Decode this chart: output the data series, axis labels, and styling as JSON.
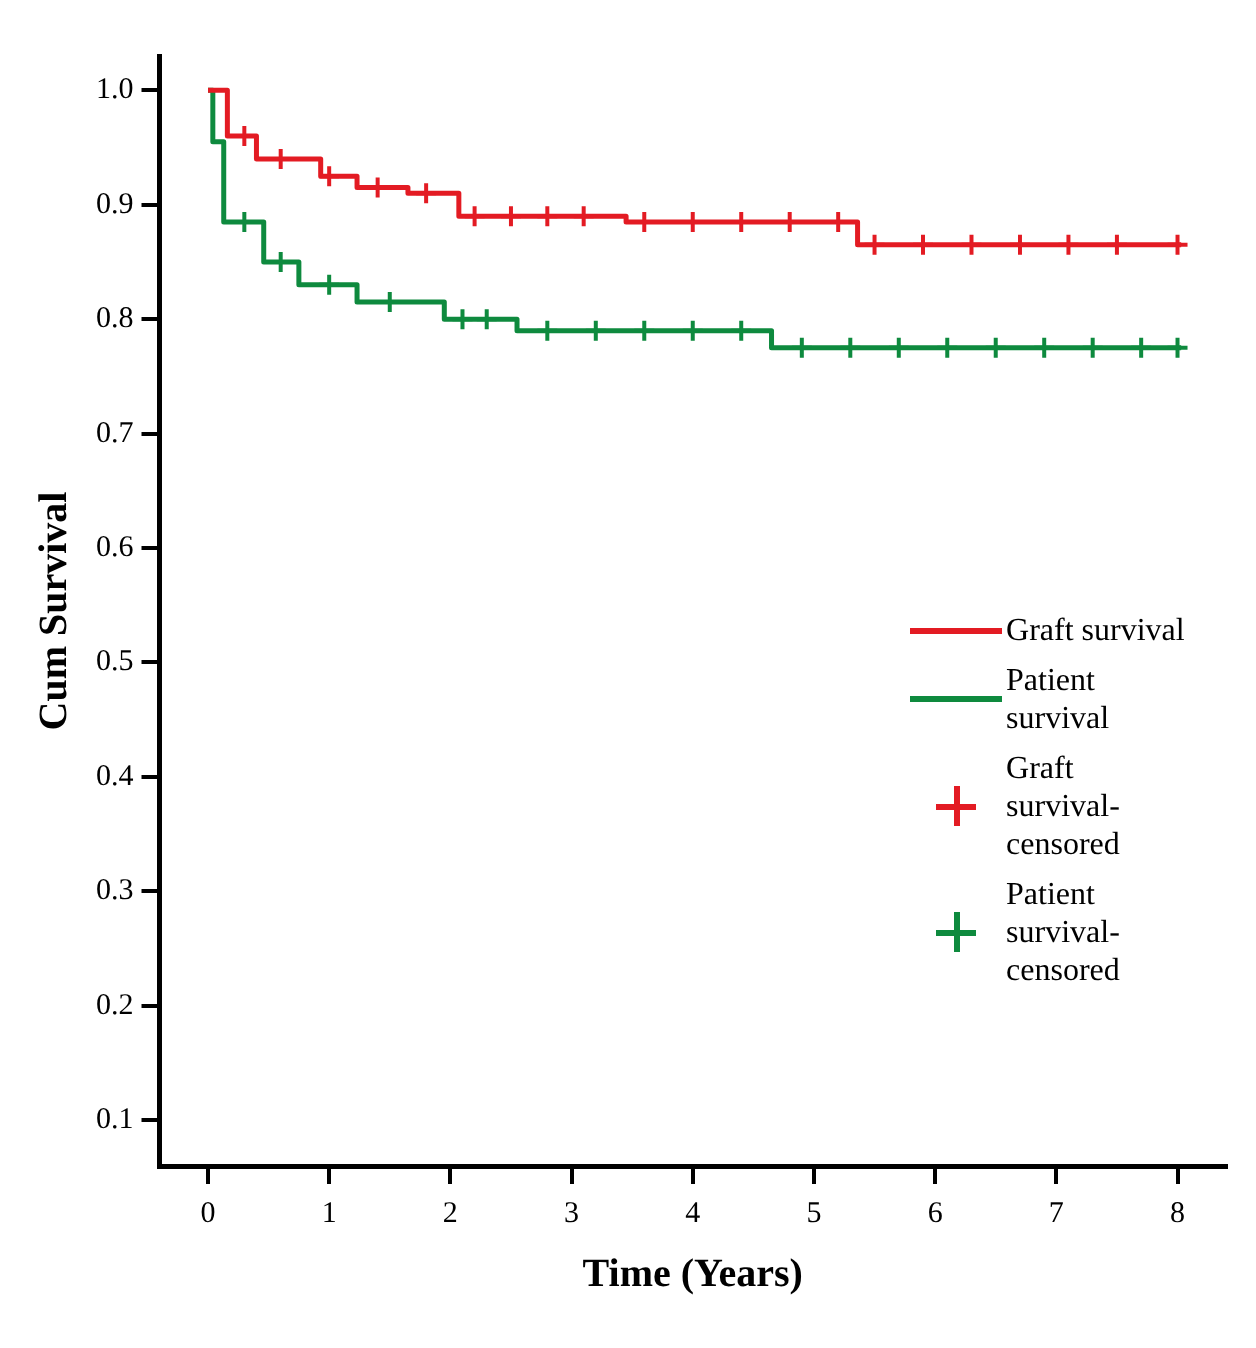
{
  "chart_data": {
    "type": "step",
    "xlabel": "Time (Years)",
    "ylabel": "Cum Survival",
    "xlim": [
      -0.4,
      8.4
    ],
    "xticks": [
      0,
      1,
      2,
      3,
      4,
      5,
      6,
      7,
      8
    ],
    "ylim": [
      0.06,
      1.03
    ],
    "yticks": [
      0.1,
      0.2,
      0.3,
      0.4,
      0.5,
      0.6,
      0.7,
      0.8,
      0.9,
      {
        "value": 1.0,
        "label": "1.0"
      }
    ],
    "grid": false,
    "legend": "right",
    "series": [
      {
        "name": "Graft survival",
        "color": "#e31b23",
        "marker": "none",
        "x": [
          0,
          0.16,
          0.4,
          0.93,
          1.23,
          1.65,
          2.07,
          3.45,
          5.36,
          8.03
        ],
        "values": [
          1.0,
          0.96,
          0.94,
          0.925,
          0.915,
          0.91,
          0.89,
          0.885,
          0.865,
          0.865
        ]
      },
      {
        "name": "Patient survival",
        "color": "#0e8a3e",
        "marker": "none",
        "x": [
          0,
          0.04,
          0.13,
          0.46,
          0.75,
          1.23,
          1.95,
          2.55,
          4.65,
          8.03
        ],
        "values": [
          1.0,
          0.955,
          0.885,
          0.85,
          0.83,
          0.815,
          0.8,
          0.79,
          0.775,
          0.775
        ]
      },
      {
        "type": "scatter",
        "name": "Graft survival-censored",
        "color": "#e31b23",
        "marker": "cross",
        "x": [
          0.3,
          0.6,
          1.0,
          1.4,
          1.8,
          2.2,
          2.5,
          2.8,
          3.1,
          3.6,
          4.0,
          4.4,
          4.8,
          5.2,
          5.5,
          5.9,
          6.3,
          6.7,
          7.1,
          7.5,
          8.0
        ],
        "values": [
          0.96,
          0.94,
          0.925,
          0.915,
          0.91,
          0.89,
          0.89,
          0.89,
          0.89,
          0.885,
          0.885,
          0.885,
          0.885,
          0.885,
          0.865,
          0.865,
          0.865,
          0.865,
          0.865,
          0.865,
          0.865
        ]
      },
      {
        "type": "scatter",
        "name": "Patient survival-censored",
        "color": "#0e8a3e",
        "marker": "cross",
        "x": [
          0.3,
          0.6,
          1.0,
          1.5,
          2.1,
          2.3,
          2.8,
          3.2,
          3.6,
          4.0,
          4.4,
          4.9,
          5.3,
          5.7,
          6.1,
          6.5,
          6.9,
          7.3,
          7.7,
          8.0
        ],
        "values": [
          0.885,
          0.85,
          0.83,
          0.815,
          0.8,
          0.8,
          0.79,
          0.79,
          0.79,
          0.79,
          0.79,
          0.775,
          0.775,
          0.775,
          0.775,
          0.775,
          0.775,
          0.775,
          0.775,
          0.775
        ]
      }
    ]
  }
}
